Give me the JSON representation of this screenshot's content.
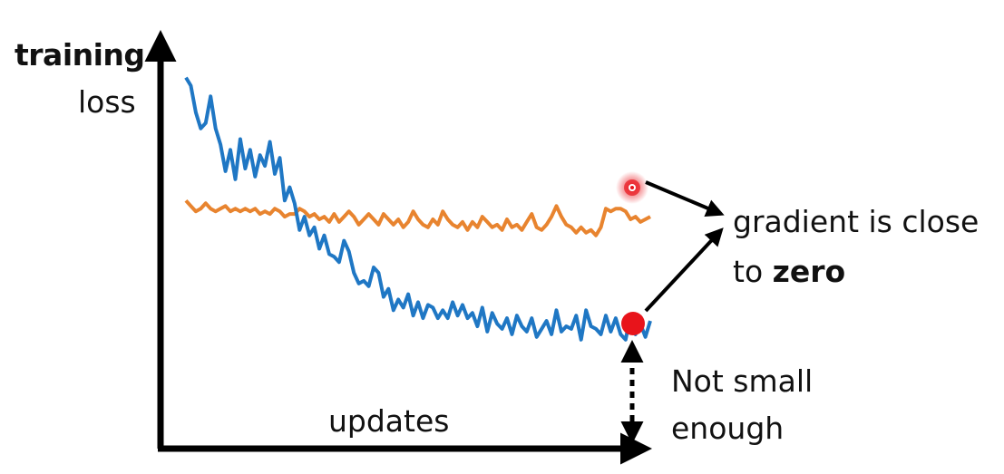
{
  "labels": {
    "y_axis_bold": "training",
    "y_axis_regular": "loss",
    "x_axis": "updates",
    "gradient_line1": "gradient is close",
    "gradient_line2_prefix": "to",
    "gradient_line2_bold": "zero",
    "small_line1": "Not small",
    "small_line2": "enough"
  },
  "colors": {
    "axis": "#000000",
    "blue_curve": "#1f77c4",
    "orange_curve": "#e8842f",
    "marker": "#e8141b",
    "text": "#111111"
  },
  "chart_data": {
    "type": "line",
    "xlabel": "updates",
    "ylabel": "training loss",
    "series": [
      {
        "color": "#1f77c4",
        "values": [
          0.93,
          0.9,
          0.8,
          0.74,
          0.76,
          0.86,
          0.74,
          0.68,
          0.58,
          0.66,
          0.55,
          0.7,
          0.59,
          0.66,
          0.56,
          0.64,
          0.6,
          0.69,
          0.57,
          0.63,
          0.47,
          0.52,
          0.46,
          0.36,
          0.41,
          0.34,
          0.37,
          0.29,
          0.34,
          0.27,
          0.26,
          0.24,
          0.32,
          0.28,
          0.2,
          0.16,
          0.17,
          0.15,
          0.22,
          0.2,
          0.11,
          0.14,
          0.06,
          0.1,
          0.07,
          0.12,
          0.04,
          0.09,
          0.03,
          0.08,
          0.07,
          0.03,
          0.06,
          0.03,
          0.09,
          0.04,
          0.08,
          0.03,
          0.05,
          0.0,
          0.07,
          -0.02,
          0.05,
          0.01,
          -0.01,
          0.03,
          -0.03,
          0.04,
          0.0,
          -0.02,
          0.03,
          -0.04,
          -0.01,
          0.02,
          -0.03,
          0.06,
          -0.02,
          0.0,
          -0.01,
          0.04,
          -0.05,
          0.06,
          0.0,
          -0.01,
          -0.03,
          0.04,
          -0.02,
          0.03,
          -0.03,
          -0.05,
          0.04,
          -0.03,
          0.01,
          -0.04,
          0.02
        ]
      },
      {
        "color": "#e8842f",
        "values": [
          0.47,
          0.45,
          0.43,
          0.44,
          0.46,
          0.44,
          0.43,
          0.44,
          0.45,
          0.43,
          0.44,
          0.43,
          0.44,
          0.43,
          0.44,
          0.42,
          0.43,
          0.42,
          0.44,
          0.43,
          0.41,
          0.42,
          0.42,
          0.44,
          0.43,
          0.41,
          0.42,
          0.4,
          0.41,
          0.39,
          0.42,
          0.39,
          0.41,
          0.43,
          0.41,
          0.38,
          0.4,
          0.42,
          0.4,
          0.38,
          0.42,
          0.4,
          0.38,
          0.4,
          0.37,
          0.39,
          0.43,
          0.4,
          0.38,
          0.37,
          0.4,
          0.38,
          0.43,
          0.4,
          0.38,
          0.37,
          0.39,
          0.36,
          0.39,
          0.37,
          0.41,
          0.39,
          0.37,
          0.38,
          0.36,
          0.4,
          0.37,
          0.38,
          0.36,
          0.39,
          0.42,
          0.37,
          0.36,
          0.38,
          0.41,
          0.45,
          0.41,
          0.38,
          0.37,
          0.35,
          0.37,
          0.35,
          0.36,
          0.34,
          0.37,
          0.44,
          0.43,
          0.44,
          0.44,
          0.43,
          0.4,
          0.41,
          0.39,
          0.4,
          0.41
        ]
      }
    ]
  }
}
